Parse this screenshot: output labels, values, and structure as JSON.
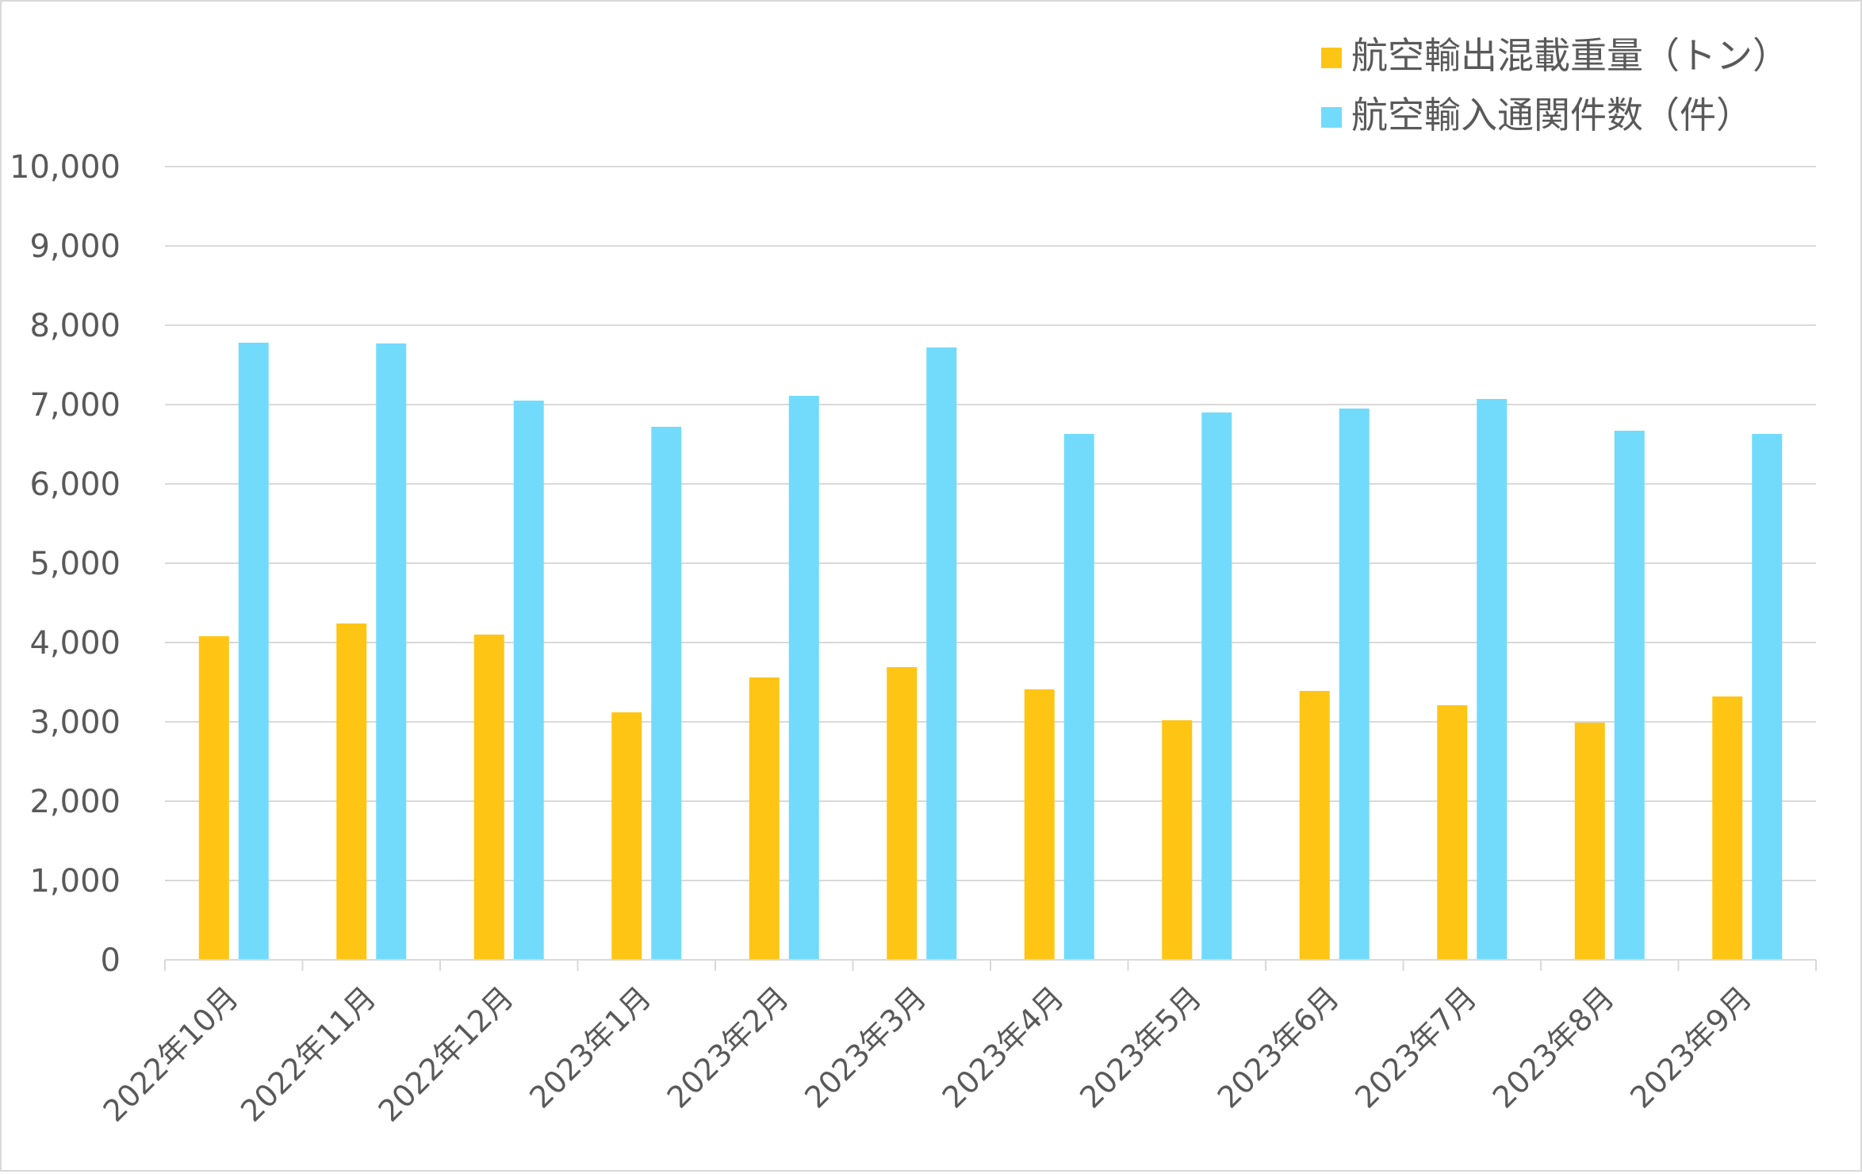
{
  "chart_data": {
    "type": "bar",
    "categories": [
      "2022年10月",
      "2022年11月",
      "2022年12月",
      "2023年1月",
      "2023年2月",
      "2023年3月",
      "2023年4月",
      "2023年5月",
      "2023年6月",
      "2023年7月",
      "2023年8月",
      "2023年9月"
    ],
    "series": [
      {
        "name": "航空輸出混載重量（トン）",
        "color": "#ffc515",
        "values": [
          4080,
          4240,
          4100,
          3120,
          3560,
          3690,
          3410,
          3020,
          3390,
          3210,
          2990,
          3320
        ]
      },
      {
        "name": "航空輸入通関件数（件）",
        "color": "#72dbfc",
        "values": [
          7780,
          7770,
          7050,
          6720,
          7110,
          7720,
          6630,
          6900,
          6950,
          7070,
          6670,
          6630
        ]
      }
    ],
    "ylim": [
      0,
      10000
    ],
    "yticks": [
      "0",
      "1,000",
      "2,000",
      "3,000",
      "4,000",
      "5,000",
      "6,000",
      "7,000",
      "8,000",
      "9,000",
      "10,000"
    ],
    "grid": true,
    "legend_position": "top-right",
    "title": "",
    "xlabel": "",
    "ylabel": ""
  }
}
